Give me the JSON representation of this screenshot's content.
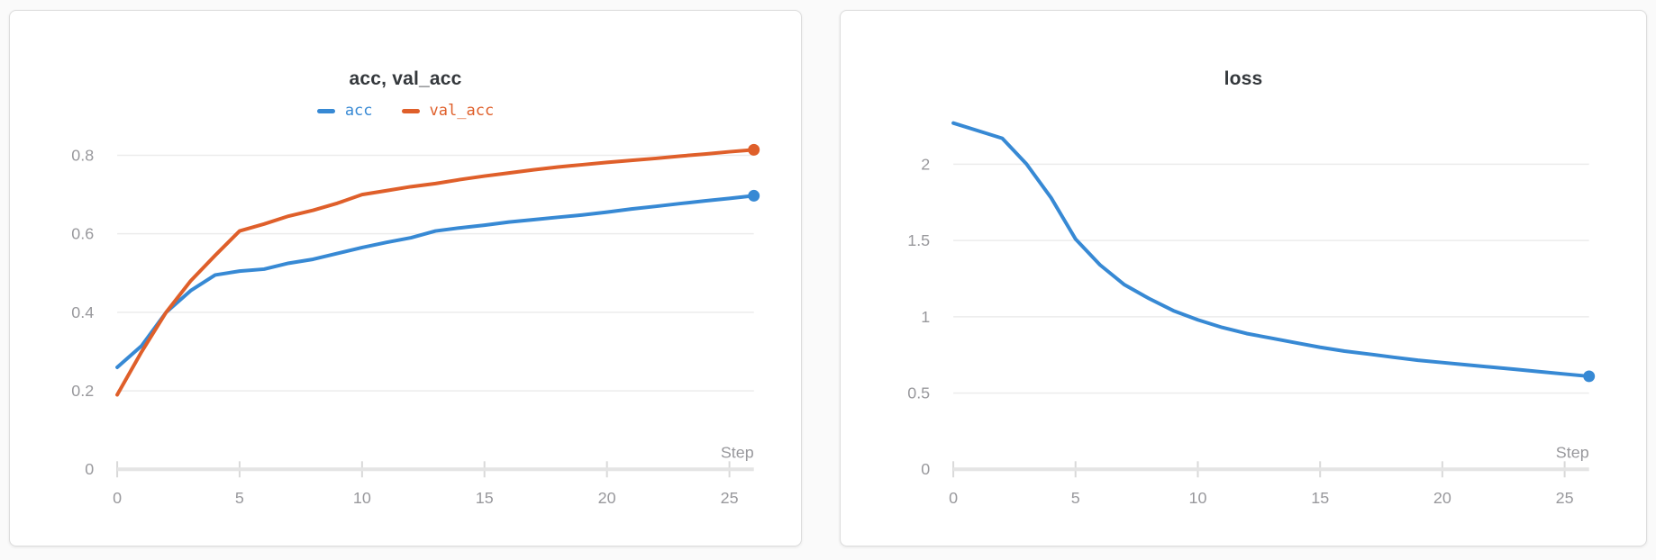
{
  "theme": {
    "page_bg": "#fafafa",
    "card_bg": "#ffffff",
    "card_border": "#dcdcdc",
    "title_color": "#34383c",
    "axis_text_color": "#98989c",
    "grid_color": "#ececec",
    "axis_line_color": "#e4e4e4",
    "tick_color": "#d9d9d9",
    "series_blue": "#3789d4",
    "series_orange": "#df5f2a"
  },
  "chart_data": [
    {
      "type": "line",
      "title": "acc, val_acc",
      "xlabel": "Step",
      "ylabel": "",
      "xlim": [
        0,
        26
      ],
      "ylim": [
        0,
        0.9
      ],
      "grid": true,
      "legend_position": "top-center",
      "x_ticks": [
        0,
        5,
        10,
        15,
        20,
        25
      ],
      "y_ticks": [
        0,
        0.2,
        0.4,
        0.6,
        0.8
      ],
      "y_tick_labels": [
        "0",
        "0.2",
        "0.4",
        "0.6",
        "0.8"
      ],
      "x": [
        0,
        1,
        2,
        3,
        4,
        5,
        6,
        7,
        8,
        9,
        10,
        11,
        12,
        13,
        14,
        15,
        16,
        17,
        18,
        19,
        20,
        21,
        22,
        23,
        24,
        25,
        26
      ],
      "series": [
        {
          "name": "acc",
          "color": "#3789d4",
          "values": [
            0.26,
            0.315,
            0.4,
            0.455,
            0.495,
            0.505,
            0.51,
            0.525,
            0.535,
            0.55,
            0.565,
            0.578,
            0.59,
            0.607,
            0.615,
            0.622,
            0.63,
            0.636,
            0.642,
            0.648,
            0.655,
            0.663,
            0.67,
            0.677,
            0.684,
            0.69,
            0.697
          ]
        },
        {
          "name": "val_acc",
          "color": "#df5f2a",
          "values": [
            0.19,
            0.3,
            0.4,
            0.48,
            0.545,
            0.607,
            0.625,
            0.645,
            0.66,
            0.678,
            0.7,
            0.71,
            0.72,
            0.728,
            0.738,
            0.747,
            0.755,
            0.763,
            0.77,
            0.776,
            0.782,
            0.787,
            0.792,
            0.798,
            0.803,
            0.809,
            0.814
          ]
        }
      ]
    },
    {
      "type": "line",
      "title": "loss",
      "xlabel": "Step",
      "ylabel": "",
      "xlim": [
        0,
        26
      ],
      "ylim": [
        0,
        2.4
      ],
      "grid": true,
      "legend_position": "none",
      "x_ticks": [
        0,
        5,
        10,
        15,
        20,
        25
      ],
      "y_ticks": [
        0,
        0.5,
        1,
        1.5,
        2
      ],
      "y_tick_labels": [
        "0",
        "0.5",
        "1",
        "1.5",
        "2"
      ],
      "x": [
        0,
        1,
        2,
        3,
        4,
        5,
        6,
        7,
        8,
        9,
        10,
        11,
        12,
        13,
        14,
        15,
        16,
        17,
        18,
        19,
        20,
        21,
        22,
        23,
        24,
        25,
        26
      ],
      "series": [
        {
          "name": "loss",
          "color": "#3789d4",
          "values": [
            2.27,
            2.22,
            2.17,
            2.0,
            1.78,
            1.51,
            1.34,
            1.21,
            1.12,
            1.04,
            0.98,
            0.93,
            0.89,
            0.86,
            0.83,
            0.8,
            0.775,
            0.755,
            0.735,
            0.715,
            0.7,
            0.685,
            0.67,
            0.655,
            0.64,
            0.625,
            0.61
          ]
        }
      ]
    }
  ]
}
